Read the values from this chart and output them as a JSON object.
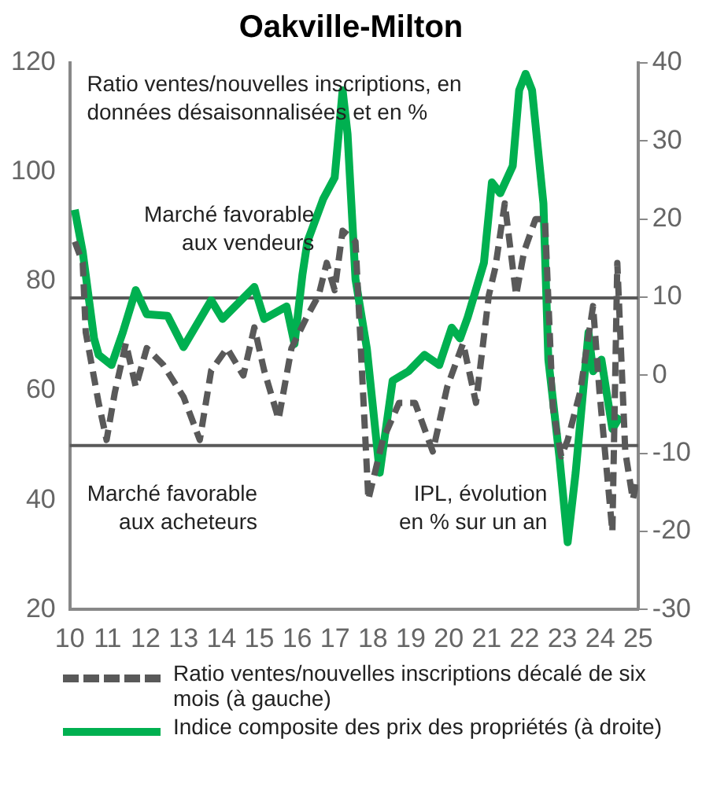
{
  "chart_data": {
    "type": "line",
    "title": "Oakville-Milton",
    "annotations": [
      "Ratio ventes/nouvelles inscriptions, en\ndonnées désaisonnalisées et en %",
      "Marché favorable\naux vendeurs",
      "Marché favorable\naux acheteurs",
      "IPL, évolution\nen % sur un an"
    ],
    "series": [
      {
        "name": "Ratio ventes/nouvelles inscriptions décalé de six mois (à gauche)",
        "color": "#595959",
        "line_style": "dashed",
        "x": [
          2010.13,
          2010.34,
          2010.42,
          2010.76,
          2010.97,
          2011.19,
          2011.48,
          2011.74,
          2012.03,
          2012.46,
          2013.0,
          2013.43,
          2013.73,
          2014.15,
          2014.58,
          2014.87,
          2015.13,
          2015.51,
          2015.85,
          2016.27,
          2016.57,
          2016.78,
          2016.99,
          2017.2,
          2017.54,
          2017.88,
          2018.26,
          2018.69,
          2019.11,
          2019.58,
          2019.96,
          2020.38,
          2020.72,
          2021.06,
          2021.23,
          2021.48,
          2021.78,
          2021.99,
          2022.29,
          2022.54,
          2022.75,
          2022.97,
          2023.14,
          2023.47,
          2023.81,
          2023.98,
          2024.32,
          2024.45,
          2024.66,
          2024.86,
          2024.98
        ],
        "values": [
          87.3,
          83.4,
          70.7,
          57.8,
          51,
          59.8,
          68.7,
          60.7,
          67.8,
          64.8,
          58.9,
          51,
          63.7,
          67.8,
          62.8,
          71.6,
          63.7,
          54.8,
          67.8,
          73.7,
          77.5,
          83.4,
          78.4,
          89.3,
          87.3,
          40.1,
          51,
          57.8,
          57.8,
          48.9,
          60.7,
          68.7,
          57.8,
          77.5,
          82.5,
          94.3,
          77.5,
          85.5,
          91.4,
          91.4,
          56.9,
          48,
          51,
          59.8,
          75.5,
          59.8,
          34.2,
          83.4,
          48.9,
          40.1,
          44
        ]
      },
      {
        "name": "Indice composite des prix des propriétés (à droite)",
        "color": "#00b050",
        "line_style": "solid",
        "axis": "y2",
        "x": [
          2010.13,
          2010.34,
          2010.64,
          2010.76,
          2011.1,
          2011.4,
          2011.74,
          2012.03,
          2012.58,
          2013.0,
          2013.73,
          2014.03,
          2014.87,
          2015.13,
          2015.72,
          2015.93,
          2016.14,
          2016.27,
          2016.69,
          2016.99,
          2017.2,
          2017.33,
          2017.54,
          2017.84,
          2018.18,
          2018.52,
          2018.94,
          2019.36,
          2019.75,
          2020.08,
          2020.3,
          2020.5,
          2020.93,
          2021.14,
          2021.36,
          2021.69,
          2021.86,
          2022.03,
          2022.2,
          2022.5,
          2022.63,
          2022.92,
          2023.14,
          2023.35,
          2023.69,
          2023.81,
          2024.03,
          2024.32,
          2024.53
        ],
        "values": [
          21.2,
          15.8,
          4.7,
          2.6,
          1.3,
          5.5,
          10.9,
          7.8,
          7.6,
          3.6,
          9.6,
          7.2,
          11.3,
          7.2,
          8.8,
          4.0,
          12.9,
          17.1,
          22.6,
          25.3,
          36.5,
          30.9,
          12.3,
          3.4,
          -12.5,
          -0.7,
          0.5,
          2.6,
          1.3,
          6.1,
          4.7,
          7.4,
          14.4,
          24.7,
          23.3,
          26.8,
          36.5,
          38.6,
          36.5,
          22.0,
          2.0,
          -10.4,
          -21.4,
          -12.5,
          5.5,
          0.5,
          2.0,
          -6.9,
          -5.2
        ]
      }
    ],
    "xlim": [
      2010,
      2025
    ],
    "xticks": [
      {
        "value": 2010,
        "label": "10"
      },
      {
        "value": 2011,
        "label": "11"
      },
      {
        "value": 2012,
        "label": "12"
      },
      {
        "value": 2013,
        "label": "13"
      },
      {
        "value": 2014,
        "label": "14"
      },
      {
        "value": 2015,
        "label": "15"
      },
      {
        "value": 2016,
        "label": "16"
      },
      {
        "value": 2017,
        "label": "17"
      },
      {
        "value": 2018,
        "label": "18"
      },
      {
        "value": 2019,
        "label": "19"
      },
      {
        "value": 2020,
        "label": "20"
      },
      {
        "value": 2021,
        "label": "21"
      },
      {
        "value": 2022,
        "label": "22"
      },
      {
        "value": 2023,
        "label": "23"
      },
      {
        "value": 2024,
        "label": "24"
      },
      {
        "value": 2025,
        "label": "25"
      }
    ],
    "ylim": [
      20,
      120
    ],
    "yticks": [
      20,
      40,
      60,
      80,
      100,
      120
    ],
    "y2lim": [
      -30,
      40
    ],
    "y2ticks": [
      -30,
      -20,
      -10,
      0,
      10,
      20,
      30,
      40
    ],
    "ref_lines": [
      {
        "axis": "y",
        "value": 77,
        "color": "#595959"
      },
      {
        "axis": "y",
        "value": 50,
        "color": "#595959"
      }
    ],
    "grid": false,
    "legend": "bottom",
    "marker": "none"
  }
}
